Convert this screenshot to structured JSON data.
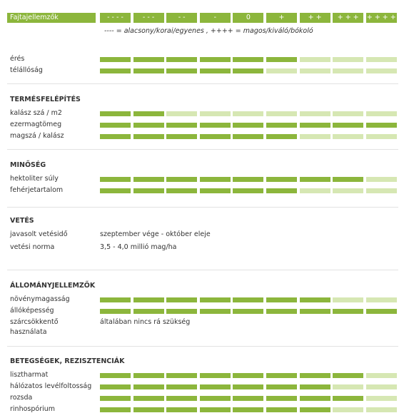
{
  "header": {
    "title": "Fajtajellemzők",
    "scale": [
      "- - - -",
      "- - -",
      "- -",
      "-",
      "0",
      "+",
      "+ +",
      "+ + +",
      "+ + + +"
    ],
    "legend": "---- = alacsony/korai/egyenes , ++++ = magos/kiváló/bókoló"
  },
  "sections": [
    {
      "rows": [
        {
          "label": "érés",
          "level": 6
        },
        {
          "label": "télállóság",
          "level": 5
        }
      ]
    },
    {
      "title": "TERMÉSFELÉPÍTÉS",
      "rows": [
        {
          "label": "kalász szá / m2",
          "level": 2
        },
        {
          "label": "ezermagtömeg",
          "level": 9
        },
        {
          "label": "magszá / kalász",
          "level": 6
        }
      ]
    },
    {
      "title": "MINŐSÉG",
      "rows": [
        {
          "label": "hektoliter súly",
          "level": 8
        },
        {
          "label": "fehérjetartalom",
          "level": 6
        }
      ]
    },
    {
      "title": "VETÉS",
      "rows": [
        {
          "label": "javasolt vetésidő",
          "text": "szeptember vége - október eleje"
        },
        {
          "label": "vetési norma",
          "text": "3,5 - 4,0 millió mag/ha"
        }
      ]
    },
    {
      "title": "ÁLLOMÁNYJELLEMZŐK",
      "rows": [
        {
          "label": "növénymagasság",
          "level": 7
        },
        {
          "label": "állóképesség",
          "level": 9
        },
        {
          "label": "szárcsökkentő használata",
          "text": "általában nincs rá szükség"
        }
      ]
    },
    {
      "title": "BETEGSÉGEK, REZISZTENCIÁK",
      "rows": [
        {
          "label": "lisztharmat",
          "level": 8
        },
        {
          "label": "hálózatos levélfoltosság",
          "level": 7
        },
        {
          "label": "rozsda",
          "level": 8
        },
        {
          "label": "rinhospórium",
          "level": 7
        }
      ]
    }
  ]
}
